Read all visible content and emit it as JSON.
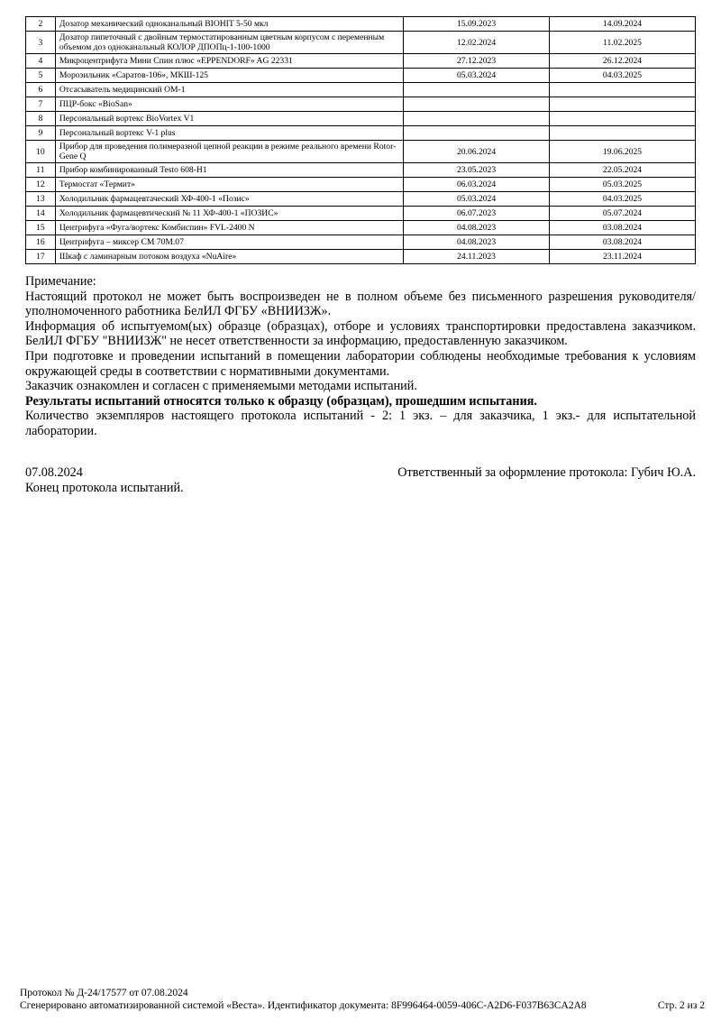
{
  "equipment_table": {
    "rows": [
      {
        "num": "2",
        "name": "Дозатор механический одноканальный BIOHIT 5-50 мкл",
        "date_from": "15.09.2023",
        "date_to": "14.09.2024"
      },
      {
        "num": "3",
        "name": "Дозатор пипеточный с двойным термостатированным цветным корпусом с переменным объемом доз одноканальный КОЛОР ДПОПц-1-100-1000",
        "date_from": "12.02.2024",
        "date_to": "11.02.2025"
      },
      {
        "num": "4",
        "name": "Микроцентрифуга Мини Спин плюс «EPPENDORF» AG 22331",
        "date_from": "27.12.2023",
        "date_to": "26.12.2024"
      },
      {
        "num": "5",
        "name": "Морозильник «Саратов-106», МКШ-125",
        "date_from": "05.03.2024",
        "date_to": "04.03.2025"
      },
      {
        "num": "6",
        "name": "Отсасыватель медицинский ОМ-1",
        "date_from": "",
        "date_to": ""
      },
      {
        "num": "7",
        "name": "ПЦР-бокс «BioSan»",
        "date_from": "",
        "date_to": ""
      },
      {
        "num": "8",
        "name": "Персональный вортекс BioVortex V1",
        "date_from": "",
        "date_to": ""
      },
      {
        "num": "9",
        "name": "Персональный вортекс V-1 plus",
        "date_from": "",
        "date_to": ""
      },
      {
        "num": "10",
        "name": "Прибор для проведения полимеразной цепной реакции в режиме реального времени Rotor-Gene Q",
        "date_from": "20.06.2024",
        "date_to": "19.06.2025"
      },
      {
        "num": "11",
        "name": "Прибор комбинированный Testo 608-H1",
        "date_from": "23.05.2023",
        "date_to": "22.05.2024"
      },
      {
        "num": "12",
        "name": "Термостат «Термит»",
        "date_from": "06.03.2024",
        "date_to": "05.03.2025"
      },
      {
        "num": "13",
        "name": "Холодильник фармацевтачеcкий ХФ-400-1 «Позис»",
        "date_from": "05.03.2024",
        "date_to": "04.03.2025"
      },
      {
        "num": "14",
        "name": "Холодильник фармацевтический № 11 ХФ-400-1 «ПОЗИС»",
        "date_from": "06.07.2023",
        "date_to": "05.07.2024"
      },
      {
        "num": "15",
        "name": "Центрифуга «Фуга/вортекс Комбиспин» FVL-2400 N",
        "date_from": "04.08.2023",
        "date_to": "03.08.2024"
      },
      {
        "num": "16",
        "name": "Центрифуга – миксер СМ 70М.07",
        "date_from": "04.08.2023",
        "date_to": "03.08.2024"
      },
      {
        "num": "17",
        "name": "Шкаф с ламинарным потоком воздуха «NuAire»",
        "date_from": "24.11.2023",
        "date_to": "23.11.2024"
      }
    ]
  },
  "notes": {
    "heading": "Примечание:",
    "p1": "Настоящий протокол не может быть воспроизведен не в полном объеме без письменного разрешения руководителя/уполномоченного работника БелИЛ ФГБУ «ВНИИЗЖ».",
    "p2": "Информация об испытуемом(ых) образце (образцах), отборе и условиях транспортировки предоставлена заказчиком. БелИЛ ФГБУ \"ВНИИЗЖ\" не несет ответственности за информацию, предоставленную заказчиком.",
    "p3": "При подготовке и проведении испытаний в помещении лаборатории соблюдены необходимые требования к условиям окружающей среды в соответствии с нормативными документами.",
    "p4": "Заказчик ознакомлен и согласен с применяемыми методами испытаний.",
    "p5_bold": "Результаты испытаний относятся только к образцу (образцам), прошедшим испытания.",
    "p6": "Количество экземпляров настоящего протокола испытаний - 2: 1 экз. – для заказчика, 1 экз.- для испытательной лаборатории."
  },
  "signature": {
    "date": "07.08.2024",
    "responsible": "Ответственный за оформление протокола: Губич Ю.А.",
    "end_text": "Конец протокола испытаний."
  },
  "footer": {
    "protocol": "Протокол № Д-24/17577 от 07.08.2024",
    "generated": "Сгенерировано автоматизированной системой «Веста». Идентификатор документа: 8F996464-0059-406C-A2D6-F037B63CA2A8",
    "page": "Стр. 2 из 2"
  }
}
